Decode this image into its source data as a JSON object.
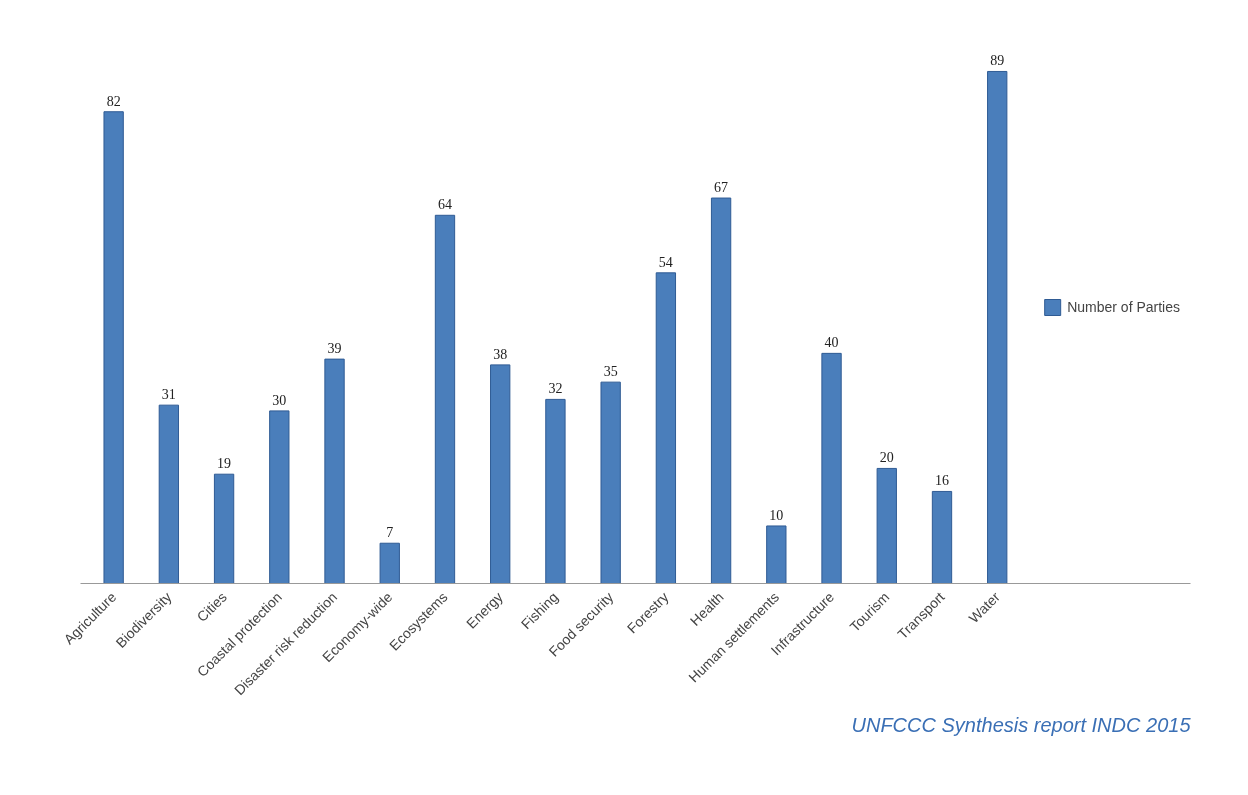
{
  "chart_data": {
    "type": "bar",
    "categories": [
      "Agriculture",
      "Biodiversity",
      "Cities",
      "Coastal protection",
      "Disaster risk reduction",
      "Economy-wide",
      "Ecosystems",
      "Energy",
      "Fishing",
      "Food security",
      "Forestry",
      "Health",
      "Human settlements",
      "Infrastructure",
      "Tourism",
      "Transport",
      "Water"
    ],
    "series": [
      {
        "name": "Number of Parties",
        "color": "#4a7ebb",
        "values": [
          82,
          31,
          19,
          30,
          39,
          7,
          64,
          38,
          32,
          35,
          54,
          67,
          10,
          40,
          20,
          16,
          89
        ]
      }
    ],
    "data_labels": true,
    "grid": false,
    "legend": "right",
    "annotations": [
      "UNFCCC Synthesis report INDC 2015"
    ]
  }
}
